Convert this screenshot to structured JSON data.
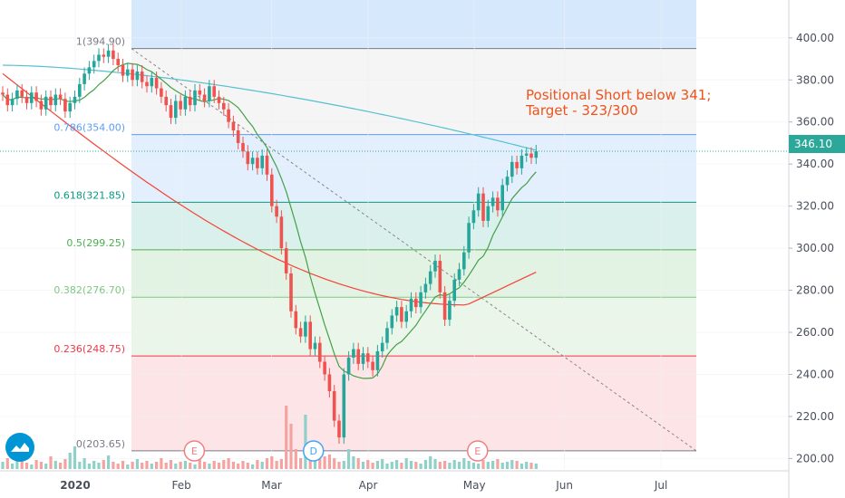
{
  "chart_data": {
    "type": "candlestick",
    "y_axis_ticks": [
      "200.00",
      "220.00",
      "240.00",
      "260.00",
      "280.00",
      "300.00",
      "320.00",
      "340.00",
      "360.00",
      "380.00",
      "400.00"
    ],
    "y_range": [
      195,
      418
    ],
    "x_axis_labels": [
      "2020",
      "Feb",
      "Mar",
      "Apr",
      "May",
      "Jun",
      "Jul"
    ],
    "x_tick_dates": [
      "2020-01-01",
      "2020-02-03",
      "2020-03-02",
      "2020-04-01",
      "2020-05-04",
      "2020-06-01",
      "2020-07-01"
    ],
    "current_price": "346.10",
    "annotation": {
      "line1": "Positional Short below 341;",
      "line2": "Target - 323/300"
    },
    "fib_levels": [
      {
        "label": "1(394.90)",
        "value": 394.9,
        "color": "#787b86"
      },
      {
        "label": "0.786(354.00)",
        "value": 354.0,
        "color": "#5b9cf6"
      },
      {
        "label": "0.618(321.85)",
        "value": 321.85,
        "color": "#089981"
      },
      {
        "label": "0.5(299.25)",
        "value": 299.25,
        "color": "#4caf50"
      },
      {
        "label": "0.382(276.70)",
        "value": 276.7,
        "color": "#81c784"
      },
      {
        "label": "0.236(248.75)",
        "value": 248.75,
        "color": "#f23645"
      },
      {
        "label": "0(203.65)",
        "value": 203.65,
        "color": "#787b86"
      }
    ],
    "fib_zone_colors": [
      "#f5f5f5",
      "#e3effd",
      "#d9f0ec",
      "#e2f3e3",
      "#eaf6ea",
      "#fde4e6"
    ],
    "events": [
      {
        "letter": "E",
        "color": "#f08080"
      },
      {
        "letter": "D",
        "color": "#42a5f5"
      },
      {
        "letter": "E",
        "color": "#f08080"
      }
    ],
    "colors": {
      "up": "#26a69a",
      "down": "#ef5350",
      "ma_slow": "#56c0cf",
      "ma_mid": "#f44336",
      "ma_fast": "#43a047"
    },
    "closes": [
      373,
      368,
      371,
      375,
      372,
      369,
      374,
      370,
      366,
      372,
      368,
      373,
      371,
      365,
      369,
      372,
      378,
      383,
      386,
      389,
      392,
      391,
      394,
      390,
      387,
      382,
      385,
      380,
      384,
      379,
      377,
      381,
      376,
      372,
      368,
      362,
      370,
      366,
      372,
      368,
      375,
      373,
      370,
      377,
      372,
      369,
      366,
      360,
      356,
      350,
      346,
      340,
      343,
      338,
      344,
      335,
      320,
      315,
      300,
      288,
      270,
      262,
      258,
      265,
      252,
      255,
      246,
      240,
      232,
      218,
      210,
      240,
      248,
      252,
      245,
      250,
      246,
      242,
      251,
      255,
      262,
      268,
      272,
      265,
      270,
      276,
      272,
      279,
      283,
      289,
      294,
      279,
      266,
      275,
      285,
      290,
      298,
      312,
      318,
      326,
      313,
      320,
      324,
      318,
      330,
      334,
      341,
      338,
      344,
      345,
      343,
      346.1
    ],
    "volumes": [
      8,
      12,
      6,
      9,
      22,
      7,
      5,
      10,
      8,
      6,
      14,
      9,
      7,
      11,
      18,
      25,
      8,
      12,
      6,
      9,
      7,
      10,
      15,
      8,
      6,
      9,
      5,
      8,
      11,
      7,
      9,
      6,
      8,
      12,
      7,
      10,
      6,
      8,
      9,
      7,
      5,
      11,
      8,
      6,
      9,
      7,
      10,
      12,
      8,
      6,
      9,
      7,
      5,
      10,
      8,
      12,
      14,
      9,
      11,
      70,
      50,
      22,
      12,
      60,
      30,
      18,
      25,
      14,
      16,
      12,
      8,
      9,
      22,
      14,
      12,
      8,
      10,
      7,
      9,
      11,
      6,
      8,
      10,
      7,
      12,
      9,
      8,
      6,
      10,
      14,
      11,
      8,
      9,
      7,
      10,
      8,
      12,
      9,
      7,
      6,
      10,
      8,
      9,
      11,
      7,
      8,
      10,
      9,
      6,
      8,
      7,
      6
    ]
  }
}
